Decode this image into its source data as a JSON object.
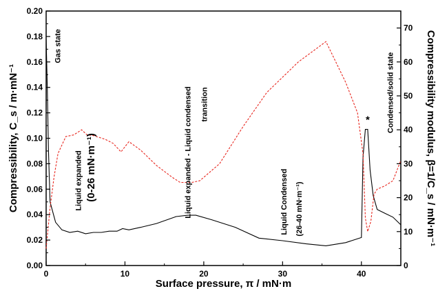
{
  "chart_data": {
    "type": "line",
    "xlabel": "Surface pressure, π / mN·m",
    "ylabel_left": "Compressibility, C_s / m·mN⁻¹",
    "ylabel_right": "Compressibility modulus, β=1/C_s / mN·m⁻¹",
    "xlim": [
      0,
      45
    ],
    "ylim_left": [
      0,
      0.2
    ],
    "ylim_right": [
      0,
      75
    ],
    "x_ticks": [
      "0",
      "10",
      "20",
      "30",
      "40"
    ],
    "y_left_ticks": [
      "0.00",
      "0.02",
      "0.04",
      "0.06",
      "0.08",
      "0.10",
      "0.12",
      "0.14",
      "0.16",
      "0.18",
      "0.20"
    ],
    "y_right_ticks": [
      "0",
      "10",
      "20",
      "30",
      "40",
      "50",
      "60",
      "70"
    ],
    "grid": false,
    "series": [
      {
        "axis": "left",
        "color": "#000000",
        "style": "solid",
        "points": [
          [
            0.0,
            0.178
          ],
          [
            0.15,
            0.14
          ],
          [
            0.3,
            0.09
          ],
          [
            0.5,
            0.05
          ],
          [
            0.8,
            0.043
          ],
          [
            1.2,
            0.034
          ],
          [
            2.0,
            0.028
          ],
          [
            3.0,
            0.026
          ],
          [
            4.0,
            0.027
          ],
          [
            5.0,
            0.025
          ],
          [
            6.0,
            0.026
          ],
          [
            7.0,
            0.026
          ],
          [
            8.0,
            0.027
          ],
          [
            9.0,
            0.027
          ],
          [
            9.7,
            0.029
          ],
          [
            10.5,
            0.028
          ],
          [
            12.0,
            0.03
          ],
          [
            14.0,
            0.033
          ],
          [
            16.5,
            0.0385
          ],
          [
            18.0,
            0.0395
          ],
          [
            19.0,
            0.0395
          ],
          [
            21.0,
            0.036
          ],
          [
            24.0,
            0.03
          ],
          [
            27.0,
            0.0215
          ],
          [
            30.0,
            0.0195
          ],
          [
            33.0,
            0.017
          ],
          [
            35.5,
            0.0155
          ],
          [
            38.0,
            0.018
          ],
          [
            40.0,
            0.022
          ],
          [
            40.2,
            0.085
          ],
          [
            40.5,
            0.107
          ],
          [
            40.8,
            0.107
          ],
          [
            41.1,
            0.075
          ],
          [
            41.5,
            0.055
          ],
          [
            42.0,
            0.044
          ],
          [
            43.0,
            0.041
          ],
          [
            44.0,
            0.038
          ],
          [
            45.0,
            0.032
          ]
        ]
      },
      {
        "axis": "right",
        "color": "#e8271f",
        "style": "dashed",
        "points": [
          [
            0.0,
            5
          ],
          [
            0.5,
            17
          ],
          [
            1.0,
            26
          ],
          [
            1.5,
            33
          ],
          [
            2.5,
            38
          ],
          [
            3.5,
            38.5
          ],
          [
            4.5,
            40
          ],
          [
            5.2,
            38.5
          ],
          [
            6.0,
            38.3
          ],
          [
            7.5,
            37.2
          ],
          [
            8.5,
            36
          ],
          [
            9.5,
            33.5
          ],
          [
            10.5,
            36.5
          ],
          [
            12.0,
            34
          ],
          [
            14.0,
            29.5
          ],
          [
            16.0,
            26
          ],
          [
            17.0,
            24.5
          ],
          [
            18.5,
            24.5
          ],
          [
            19.5,
            25
          ],
          [
            22.0,
            30
          ],
          [
            25.0,
            41
          ],
          [
            28.0,
            51
          ],
          [
            32.0,
            60
          ],
          [
            35.5,
            66
          ],
          [
            38.0,
            54
          ],
          [
            39.5,
            45
          ],
          [
            40.2,
            33
          ],
          [
            40.5,
            14
          ],
          [
            40.8,
            10
          ],
          [
            41.2,
            13
          ],
          [
            41.6,
            21
          ],
          [
            42.0,
            22.5
          ],
          [
            43.0,
            23.5
          ],
          [
            44.0,
            25
          ],
          [
            45.0,
            31
          ]
        ]
      }
    ],
    "annotations": [
      {
        "text": "Gas state",
        "x": 1.8,
        "y": 0.159,
        "rotate": -90
      },
      {
        "text": "Liquid expanded",
        "x": 4.4,
        "y": 0.043,
        "rotate": -90
      },
      {
        "text": "(0-26 mN·m⁻¹)",
        "x": 6.1,
        "y": 0.05,
        "rotate": -90,
        "big": true
      },
      {
        "text": "Liquid expanded - Liquid condensed",
        "x": 18.3,
        "y": 0.037,
        "rotate": -90
      },
      {
        "text": "transition",
        "x": 20.4,
        "y": 0.113,
        "rotate": -90
      },
      {
        "text": "Liquid Condensed",
        "x": 30.5,
        "y": 0.024,
        "rotate": -90
      },
      {
        "text": "(26-40 mN·m⁻¹)",
        "x": 32.4,
        "y": 0.023,
        "rotate": -90
      },
      {
        "text": "*",
        "x": 40.8,
        "y": 0.112,
        "rotate": 0,
        "big": true
      },
      {
        "text": "Condensed/solid state",
        "x": 44.0,
        "y": 0.104,
        "rotate": -90
      }
    ]
  }
}
